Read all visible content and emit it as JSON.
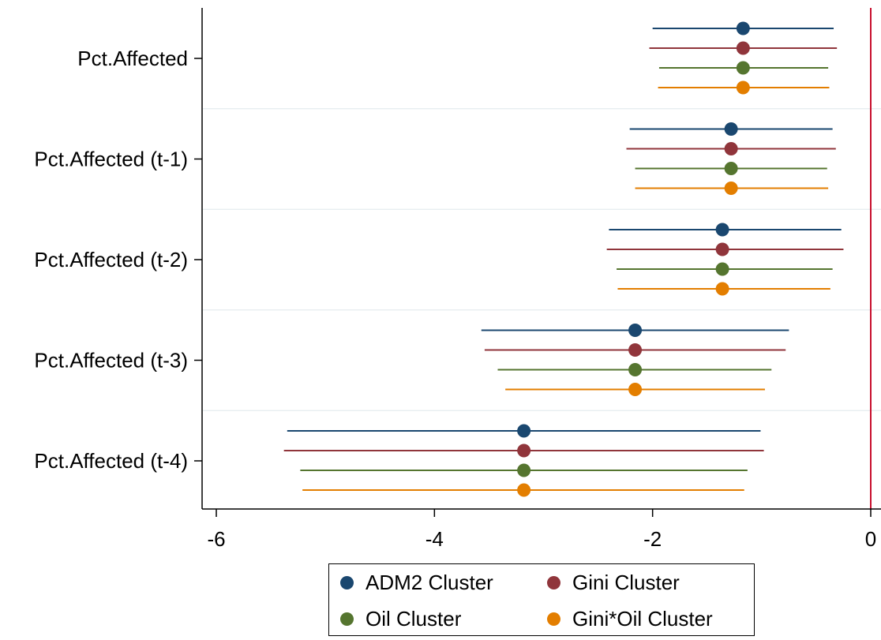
{
  "chart_data": {
    "type": "scatter",
    "subtype": "coefficient-plot",
    "orientation": "horizontal",
    "categories": [
      "Pct.Affected",
      "Pct.Affected (t-1)",
      "Pct.Affected (t-2)",
      "Pct.Affected (t-3)",
      "Pct.Affected (t-4)"
    ],
    "x_ticks": [
      -6,
      -4,
      -2,
      0
    ],
    "x_tick_labels": [
      "-6",
      "-4",
      "-2",
      "0"
    ],
    "xlim": [
      -6.2,
      0.05
    ],
    "reference_line": {
      "x": 0,
      "color": "#c8102e"
    },
    "grid": "horizontal separators between categories",
    "legend_position": "bottom",
    "series": [
      {
        "name": "ADM2 Cluster",
        "color": "#1a476f",
        "estimates": [
          -1.17,
          -1.28,
          -1.36,
          -2.16,
          -3.18
        ],
        "ci_low": [
          -2.0,
          -2.21,
          -2.4,
          -3.57,
          -5.35
        ],
        "ci_high": [
          -0.34,
          -0.35,
          -0.27,
          -0.75,
          -1.01
        ]
      },
      {
        "name": "Gini Cluster",
        "color": "#90353b",
        "estimates": [
          -1.17,
          -1.28,
          -1.36,
          -2.16,
          -3.18
        ],
        "ci_low": [
          -2.03,
          -2.24,
          -2.42,
          -3.54,
          -5.38
        ],
        "ci_high": [
          -0.31,
          -0.32,
          -0.25,
          -0.78,
          -0.98
        ]
      },
      {
        "name": "Oil Cluster",
        "color": "#55752f",
        "estimates": [
          -1.17,
          -1.28,
          -1.36,
          -2.16,
          -3.18
        ],
        "ci_low": [
          -1.94,
          -2.16,
          -2.33,
          -3.42,
          -5.23
        ],
        "ci_high": [
          -0.39,
          -0.4,
          -0.35,
          -0.91,
          -1.13
        ]
      },
      {
        "name": "Gini*Oil Cluster",
        "color": "#e37e00",
        "estimates": [
          -1.17,
          -1.28,
          -1.36,
          -2.16,
          -3.18
        ],
        "ci_low": [
          -1.95,
          -2.16,
          -2.32,
          -3.35,
          -5.21
        ],
        "ci_high": [
          -0.38,
          -0.39,
          -0.37,
          -0.97,
          -1.16
        ]
      }
    ]
  }
}
